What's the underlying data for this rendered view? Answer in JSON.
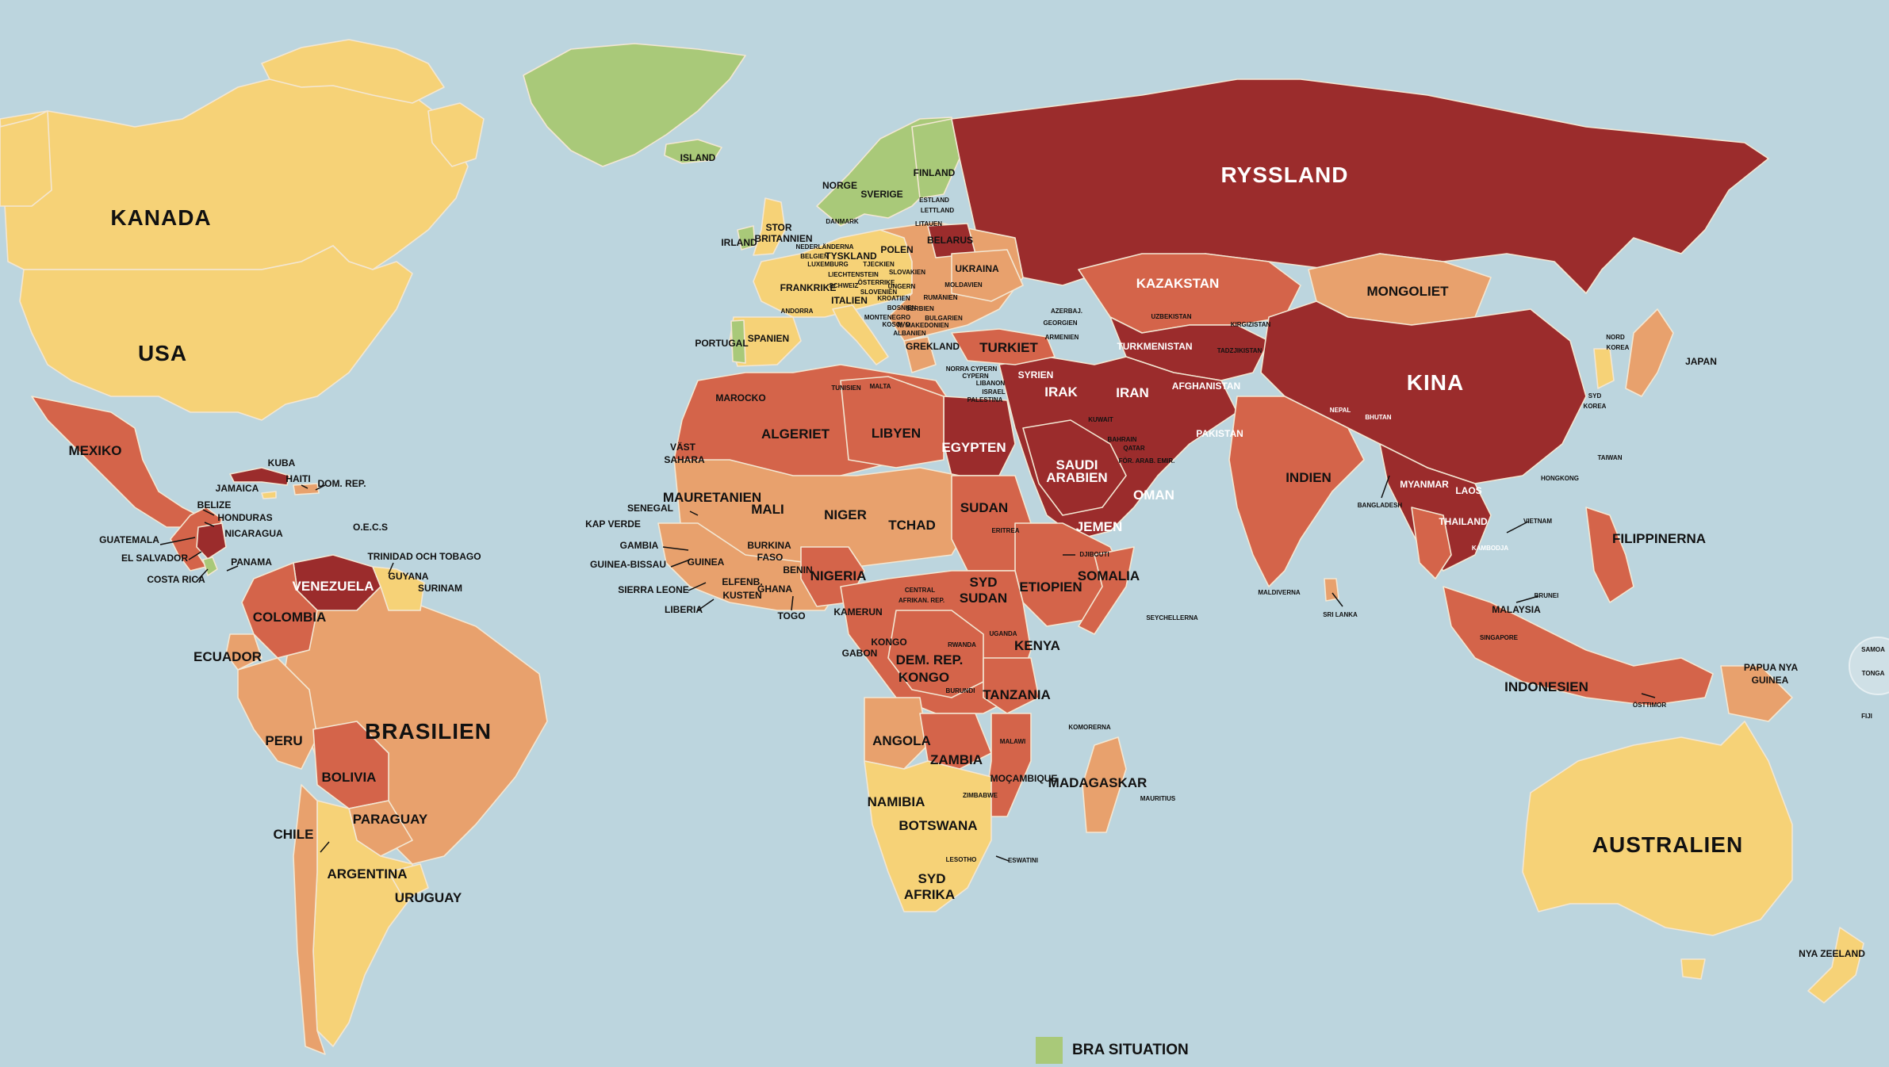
{
  "colors": {
    "ocean": "#bcd5de",
    "good": "#a9c979",
    "satisfactory": "#f6d277",
    "problematic": "#e8a16d",
    "difficult": "#d4644a",
    "very_serious": "#9b2c2c"
  },
  "legend": {
    "good_label": "BRA SITUATION"
  },
  "labels": {
    "big": [
      {
        "id": "kanada",
        "text": "KANADA"
      },
      {
        "id": "usa",
        "text": "USA"
      },
      {
        "id": "ryssland",
        "text": "RYSSLAND"
      },
      {
        "id": "kina",
        "text": "KINA"
      },
      {
        "id": "brasilien",
        "text": "BRASILIEN"
      },
      {
        "id": "australien",
        "text": "AUSTRALIEN"
      }
    ],
    "medium": [
      {
        "id": "mexiko",
        "text": "MEXIKO"
      },
      {
        "id": "kazakstan",
        "text": "KAZAKSTAN"
      },
      {
        "id": "mongoliet",
        "text": "MONGOLIET"
      },
      {
        "id": "indien",
        "text": "INDIEN"
      },
      {
        "id": "indonesien",
        "text": "INDONESIEN"
      },
      {
        "id": "algeriet",
        "text": "ALGERIET"
      },
      {
        "id": "libyen",
        "text": "LIBYEN"
      },
      {
        "id": "egypten",
        "text": "EGYPTEN"
      },
      {
        "id": "sudan",
        "text": "SUDAN"
      },
      {
        "id": "tchad",
        "text": "TCHAD"
      },
      {
        "id": "niger",
        "text": "NIGER"
      },
      {
        "id": "mali",
        "text": "MALI"
      },
      {
        "id": "mauretanien",
        "text": "MAURETANIEN"
      },
      {
        "id": "nigeria",
        "text": "NIGERIA"
      },
      {
        "id": "etiopien",
        "text": "ETIOPIEN"
      },
      {
        "id": "somalia",
        "text": "SOMALIA"
      },
      {
        "id": "syd_sudan_1",
        "text": "SYD"
      },
      {
        "id": "syd_sudan_2",
        "text": "SUDAN"
      },
      {
        "id": "kenya",
        "text": "KENYA"
      },
      {
        "id": "tanzania",
        "text": "TANZANIA"
      },
      {
        "id": "drk_1",
        "text": "DEM. REP."
      },
      {
        "id": "drk_2",
        "text": "KONGO"
      },
      {
        "id": "angola",
        "text": "ANGOLA"
      },
      {
        "id": "zambia",
        "text": "ZAMBIA"
      },
      {
        "id": "namibia",
        "text": "NAMIBIA"
      },
      {
        "id": "botswana",
        "text": "BOTSWANA"
      },
      {
        "id": "sydafrika_1",
        "text": "SYD"
      },
      {
        "id": "sydafrika_2",
        "text": "AFRIKA"
      },
      {
        "id": "madagaskar",
        "text": "MADAGASKAR"
      },
      {
        "id": "venezuela",
        "text": "VENEZUELA"
      },
      {
        "id": "colombia",
        "text": "COLOMBIA"
      },
      {
        "id": "peru",
        "text": "PERU"
      },
      {
        "id": "bolivia",
        "text": "BOLIVIA"
      },
      {
        "id": "paraguay",
        "text": "PARAGUAY"
      },
      {
        "id": "argentina",
        "text": "ARGENTINA"
      },
      {
        "id": "chile",
        "text": "CHILE"
      },
      {
        "id": "uruguay",
        "text": "URUGUAY"
      },
      {
        "id": "ecuador",
        "text": "ECUADOR"
      },
      {
        "id": "turkiet",
        "text": "TURKIET"
      },
      {
        "id": "iran",
        "text": "IRAN"
      },
      {
        "id": "irak",
        "text": "IRAK"
      },
      {
        "id": "saudi_1",
        "text": "SAUDI"
      },
      {
        "id": "saudi_2",
        "text": "ARABIEN"
      },
      {
        "id": "jemen",
        "text": "JEMEN"
      },
      {
        "id": "oman",
        "text": "OMAN"
      },
      {
        "id": "afghanistan",
        "text": "AFGHANISTAN"
      },
      {
        "id": "pakistan",
        "text": "PAKISTAN"
      },
      {
        "id": "turkmenistan",
        "text": "TURKMENISTAN"
      },
      {
        "id": "myanmar",
        "text": "MYANMAR"
      },
      {
        "id": "thailand",
        "text": "THAILAND"
      },
      {
        "id": "laos",
        "text": "LAOS"
      },
      {
        "id": "filippinerna",
        "text": "FILIPPINERNA"
      },
      {
        "id": "ukraina",
        "text": "UKRAINA"
      },
      {
        "id": "polen",
        "text": "POLEN"
      },
      {
        "id": "tyskland",
        "text": "TYSKLAND"
      },
      {
        "id": "frankrike",
        "text": "FRANKRIKE"
      },
      {
        "id": "spanien",
        "text": "SPANIEN"
      },
      {
        "id": "sverige",
        "text": "SVERIGE"
      },
      {
        "id": "norge",
        "text": "NORGE"
      },
      {
        "id": "finland",
        "text": "FINLAND"
      },
      {
        "id": "island",
        "text": "ISLAND"
      },
      {
        "id": "syrien",
        "text": "SYRIEN"
      },
      {
        "id": "marocko",
        "text": "MAROCKO"
      },
      {
        "id": "angola2",
        "text": ""
      }
    ],
    "small": [
      {
        "id": "kuba",
        "text": "KUBA"
      },
      {
        "id": "haiti",
        "text": "HAITI"
      },
      {
        "id": "dom_rep",
        "text": "DOM. REP."
      },
      {
        "id": "jamaica",
        "text": "JAMAICA"
      },
      {
        "id": "belize",
        "text": "BELIZE"
      },
      {
        "id": "honduras",
        "text": "HONDURAS"
      },
      {
        "id": "guatemala",
        "text": "GUATEMALA"
      },
      {
        "id": "nicaragua",
        "text": "NICARAGUA"
      },
      {
        "id": "el_salvador",
        "text": "EL SALVADOR"
      },
      {
        "id": "costa_rica",
        "text": "COSTA RICA"
      },
      {
        "id": "panama",
        "text": "PANAMA"
      },
      {
        "id": "oecs",
        "text": "O.E.C.S"
      },
      {
        "id": "trinidad",
        "text": "TRINIDAD OCH TOBAGO"
      },
      {
        "id": "guyana",
        "text": "GUYANA"
      },
      {
        "id": "surinam",
        "text": "SURINAM"
      },
      {
        "id": "irland",
        "text": "IRLAND"
      },
      {
        "id": "stor_1",
        "text": "STOR"
      },
      {
        "id": "stor_2",
        "text": "BRITANNIEN"
      },
      {
        "id": "portugal",
        "text": "PORTUGAL"
      },
      {
        "id": "italien",
        "text": "ITALIEN"
      },
      {
        "id": "belarus",
        "text": "BELARUS"
      },
      {
        "id": "rumanien",
        "text": "RUMÄNIEN"
      },
      {
        "id": "ungern",
        "text": "UNGERN"
      },
      {
        "id": "osterrike",
        "text": "ÖSTERRIKE"
      },
      {
        "id": "bulgarien",
        "text": "BULGARIEN"
      },
      {
        "id": "grekland",
        "text": "GREKLAND"
      },
      {
        "id": "tunisien",
        "text": "TUNISIEN"
      },
      {
        "id": "malta",
        "text": "MALTA"
      },
      {
        "id": "vast_1",
        "text": "VÄST"
      },
      {
        "id": "vast_2",
        "text": "SAHARA"
      },
      {
        "id": "senegal",
        "text": "SENEGAL"
      },
      {
        "id": "kap_verde",
        "text": "KAP VERDE"
      },
      {
        "id": "gambia",
        "text": "GAMBIA"
      },
      {
        "id": "guinea_bissau",
        "text": "GUINEA-BISSAU"
      },
      {
        "id": "guinea",
        "text": "GUINEA"
      },
      {
        "id": "sierra_leone",
        "text": "SIERRA LEONE"
      },
      {
        "id": "liberia",
        "text": "LIBERIA"
      },
      {
        "id": "elfenb_1",
        "text": "ELFENB."
      },
      {
        "id": "elfenb_2",
        "text": "KUSTEN"
      },
      {
        "id": "burkina_1",
        "text": "BURKINA"
      },
      {
        "id": "burkina_2",
        "text": "FASO"
      },
      {
        "id": "ghana",
        "text": "GHANA"
      },
      {
        "id": "togo",
        "text": "TOGO"
      },
      {
        "id": "benin",
        "text": "BENIN"
      },
      {
        "id": "kamerun",
        "text": "KAMERUN"
      },
      {
        "id": "gabon",
        "text": "GABON"
      },
      {
        "id": "kongo",
        "text": "KONGO"
      },
      {
        "id": "car_1",
        "text": "CENTRAL"
      },
      {
        "id": "car_2",
        "text": "AFRIKAN. REP."
      },
      {
        "id": "eritrea",
        "text": "ERITREA"
      },
      {
        "id": "djibouti",
        "text": "DJIBOUTI"
      },
      {
        "id": "uganda",
        "text": "UGANDA"
      },
      {
        "id": "rwanda",
        "text": "RWANDA"
      },
      {
        "id": "burundi",
        "text": "BURUNDI"
      },
      {
        "id": "malawi",
        "text": "MALAWI"
      },
      {
        "id": "mocambique",
        "text": "MOÇAMBIQUE"
      },
      {
        "id": "zimbabwe",
        "text": "ZIMBABWE"
      },
      {
        "id": "lesotho",
        "text": "LESOTHO"
      },
      {
        "id": "eswatini",
        "text": "ESWATINI"
      },
      {
        "id": "komorerna",
        "text": "KOMORERNA"
      },
      {
        "id": "mauritius",
        "text": "MAURITIUS"
      },
      {
        "id": "seychellerna",
        "text": "SEYCHELLERNA"
      },
      {
        "id": "maldiverna",
        "text": "MALDIVERNA"
      },
      {
        "id": "sri_lanka",
        "text": "SRI LANKA"
      },
      {
        "id": "nepal",
        "text": "NEPAL"
      },
      {
        "id": "bhutan",
        "text": "BHUTAN"
      },
      {
        "id": "bangladesh",
        "text": "BANGLADESH"
      },
      {
        "id": "kirgizistan",
        "text": "KIRGIZISTAN"
      },
      {
        "id": "tadzjikistan",
        "text": "TADZJIKISTAN"
      },
      {
        "id": "uzbekistan",
        "text": "UZBEKISTAN"
      },
      {
        "id": "nord_korea_1",
        "text": "NORD"
      },
      {
        "id": "nord_korea_2",
        "text": "KOREA"
      },
      {
        "id": "syd_korea_1",
        "text": "SYD"
      },
      {
        "id": "syd_korea_2",
        "text": "KOREA"
      },
      {
        "id": "japan",
        "text": "JAPAN"
      },
      {
        "id": "taiwan",
        "text": "TAIWAN"
      },
      {
        "id": "hongkong",
        "text": "HONGKONG"
      },
      {
        "id": "vietnam",
        "text": "VIETNAM"
      },
      {
        "id": "kambodja",
        "text": "KAMBODJA"
      },
      {
        "id": "malaysia",
        "text": "MALAYSIA"
      },
      {
        "id": "brunei",
        "text": "BRUNEI"
      },
      {
        "id": "singapore",
        "text": "SINGAPORE"
      },
      {
        "id": "osttimor",
        "text": "ÖSTTIMOR"
      },
      {
        "id": "png_1",
        "text": "PAPUA NYA"
      },
      {
        "id": "png_2",
        "text": "GUINEA"
      },
      {
        "id": "nya_zeeland",
        "text": "NYA ZEELAND"
      },
      {
        "id": "samoa",
        "text": "SAMOA"
      },
      {
        "id": "tonga",
        "text": "TONGA"
      },
      {
        "id": "fiji",
        "text": "FIJI"
      },
      {
        "id": "cypern",
        "text": "CYPERN"
      },
      {
        "id": "libanon",
        "text": "LIBANON"
      },
      {
        "id": "israel",
        "text": "ISRAEL"
      },
      {
        "id": "palestina",
        "text": "PALESTINA"
      },
      {
        "id": "georgien",
        "text": "GEORGIEN"
      },
      {
        "id": "armenien",
        "text": "ARMENIEN"
      },
      {
        "id": "azerbajdzjan",
        "text": "AZERBAJ."
      },
      {
        "id": "kuwait",
        "text": "KUWAIT"
      },
      {
        "id": "bahrain",
        "text": "BAHRAIN"
      },
      {
        "id": "qatar",
        "text": "QATAR"
      },
      {
        "id": "fae",
        "text": "FÖR. ARAB. EMIR."
      },
      {
        "id": "estland",
        "text": "ESTLAND"
      },
      {
        "id": "lettland",
        "text": "LETTLAND"
      },
      {
        "id": "litauen",
        "text": "LITAUEN"
      },
      {
        "id": "danmark",
        "text": "DANMARK"
      },
      {
        "id": "nederlanderna",
        "text": "NEDERLÄNDERNA"
      },
      {
        "id": "belgien",
        "text": "BELGIEN"
      },
      {
        "id": "luxemburg",
        "text": "LUXEMBURG"
      },
      {
        "id": "tjeckien",
        "text": "TJECKIEN"
      },
      {
        "id": "slovakien",
        "text": "SLOVAKIEN"
      },
      {
        "id": "moldavien",
        "text": "MOLDAVIEN"
      },
      {
        "id": "schweiz",
        "text": "SCHWEIZ"
      },
      {
        "id": "slovenien",
        "text": "SLOVENIEN"
      },
      {
        "id": "kroatien",
        "text": "KROATIEN"
      },
      {
        "id": "bosnien",
        "text": "BOSNIEN"
      },
      {
        "id": "serbien",
        "text": "SERBIEN"
      },
      {
        "id": "montenegro",
        "text": "MONTENEGRO"
      },
      {
        "id": "nordmakedonien",
        "text": "N. MAKEDONIEN"
      },
      {
        "id": "albanien",
        "text": "ALBANIEN"
      },
      {
        "id": "andorra",
        "text": "ANDORRA"
      },
      {
        "id": "liechtenstein",
        "text": "LIECHTENSTEIN"
      },
      {
        "id": "kosovo",
        "text": "KOSOVO"
      },
      {
        "id": "nordcypern",
        "text": "NORRA CYPERN"
      }
    ]
  }
}
